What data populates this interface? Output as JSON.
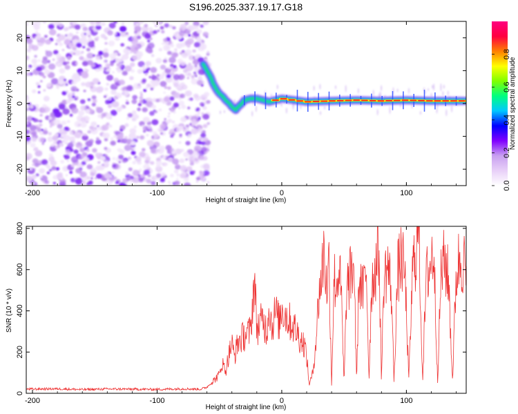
{
  "title": "S196.2025.337.19.17.G18",
  "chart_data": [
    {
      "type": "heatmap",
      "name": "spectrogram",
      "xlabel": "Height of straight line (km)",
      "ylabel": "Frequency (Hz)",
      "xlim": [
        -205,
        148
      ],
      "ylim": [
        -25,
        25
      ],
      "xticks": [
        -200,
        -100,
        0,
        100
      ],
      "yticks": [
        -20,
        -10,
        0,
        10,
        20
      ],
      "noise_region_x": [
        -205,
        -62
      ],
      "ridge": {
        "x": [
          -63,
          -60,
          -57,
          -55,
          -52,
          -50,
          -47,
          -45,
          -42,
          -40,
          -37,
          -35,
          -32,
          -30,
          -25,
          -20,
          -15,
          -10,
          -5,
          0,
          10,
          20,
          40,
          60,
          80,
          100,
          120,
          148
        ],
        "y": [
          12,
          10,
          8,
          6,
          4,
          3,
          2,
          1,
          0,
          -1,
          -2,
          -1,
          0,
          1,
          1.5,
          1.5,
          1,
          0.5,
          1,
          1.5,
          1,
          0.5,
          0.8,
          1,
          0.8,
          1,
          0.8,
          0.8
        ]
      },
      "colorbar": {
        "label": "Normalized spectral amplitude",
        "ticks": [
          "0.0",
          "0.2",
          "0.4",
          "0.6",
          "0.8"
        ],
        "range": [
          0,
          1
        ],
        "colors": [
          "#ffffff",
          "#e8d0f8",
          "#c8a0f0",
          "#8000ff",
          "#0000ff",
          "#00c8ff",
          "#00ff80",
          "#80ff00",
          "#ffff00",
          "#ff8000",
          "#ff0040",
          "#ff0080"
        ]
      }
    },
    {
      "type": "line",
      "name": "snr",
      "xlabel": "Height of straight line (km)",
      "ylabel": "SNR (10 * v/v)",
      "xlim": [
        -205,
        148
      ],
      "ylim": [
        0,
        810
      ],
      "xticks": [
        -200,
        -100,
        0,
        100
      ],
      "yticks": [
        0,
        200,
        400,
        600,
        800
      ],
      "color": "#ee3333",
      "series": [
        {
          "name": "SNR",
          "x": [
            -205,
            -180,
            -160,
            -140,
            -120,
            -100,
            -80,
            -65,
            -60,
            -55,
            -50,
            -48,
            -45,
            -42,
            -40,
            -38,
            -35,
            -30,
            -25,
            -22,
            -20,
            -18,
            -15,
            -12,
            -10,
            -8,
            -5,
            -2,
            0,
            3,
            6,
            9,
            12,
            15,
            18,
            20,
            22,
            25,
            28,
            30,
            32,
            34,
            36,
            38,
            40,
            42,
            44,
            46,
            48,
            50,
            52,
            55,
            58,
            60,
            62,
            65,
            68,
            70,
            72,
            75,
            78,
            80,
            82,
            85,
            88,
            90,
            93,
            96,
            99,
            102,
            105,
            108,
            110,
            113,
            116,
            119,
            122,
            125,
            128,
            131,
            134,
            137,
            140,
            143,
            146,
            148
          ],
          "y": [
            20,
            22,
            18,
            21,
            20,
            19,
            22,
            20,
            30,
            60,
            90,
            150,
            110,
            200,
            240,
            180,
            250,
            280,
            300,
            560,
            320,
            330,
            360,
            300,
            440,
            320,
            400,
            340,
            420,
            380,
            350,
            330,
            300,
            260,
            240,
            180,
            40,
            100,
            300,
            500,
            560,
            720,
            500,
            640,
            40,
            560,
            520,
            620,
            440,
            40,
            500,
            560,
            640,
            60,
            560,
            480,
            600,
            60,
            520,
            600,
            700,
            60,
            560,
            620,
            500,
            60,
            580,
            660,
            560,
            60,
            600,
            700,
            810,
            60,
            560,
            620,
            700,
            60,
            600,
            640,
            540,
            60,
            580,
            660,
            640,
            560
          ]
        }
      ]
    }
  ]
}
